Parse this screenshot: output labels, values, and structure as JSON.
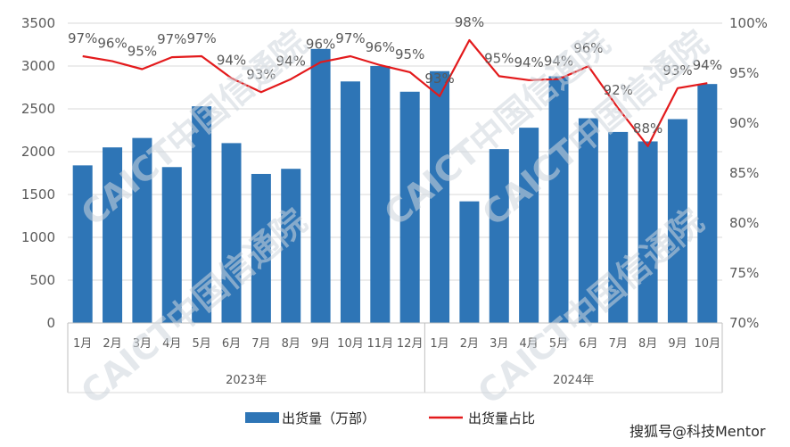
{
  "chart_data": {
    "type": "bar",
    "categories": [
      "1月",
      "2月",
      "3月",
      "4月",
      "5月",
      "6月",
      "7月",
      "8月",
      "9月",
      "10月",
      "11月",
      "12月",
      "1月",
      "2月",
      "3月",
      "4月",
      "5月",
      "6月",
      "7月",
      "8月",
      "9月",
      "10月"
    ],
    "groups": [
      {
        "label": "2023年",
        "count": 12
      },
      {
        "label": "2024年",
        "count": 10
      }
    ],
    "series": [
      {
        "name": "出货量（万部）",
        "type": "bar",
        "axis": "left",
        "color": "#2e75b6",
        "values": [
          1840,
          2050,
          2160,
          1820,
          2530,
          2100,
          1740,
          1800,
          3200,
          2820,
          3000,
          2700,
          2940,
          1420,
          2030,
          2280,
          2880,
          2390,
          2230,
          2120,
          2380,
          2790
        ]
      },
      {
        "name": "出货量占比",
        "type": "line",
        "axis": "right",
        "color": "#e31a1c",
        "values": [
          96.7,
          96.2,
          95.4,
          96.6,
          96.7,
          94.5,
          93.1,
          94.4,
          96.1,
          96.7,
          95.8,
          95.1,
          92.7,
          98.3,
          94.7,
          94.3,
          94.4,
          95.7,
          91.5,
          87.7,
          93.5,
          94.0
        ],
        "labels": [
          "97%",
          "96%",
          "95%",
          "97%",
          "97%",
          "94%",
          "93%",
          "94%",
          "96%",
          "97%",
          "96%",
          "95%",
          "93%",
          "98%",
          "95%",
          "94%",
          "94%",
          "96%",
          "92%",
          "88%",
          "93%",
          "94%"
        ]
      }
    ],
    "y_left": {
      "min": 0,
      "max": 3500,
      "ticks": [
        "0",
        "500",
        "1000",
        "1500",
        "2000",
        "2500",
        "3000",
        "3500"
      ]
    },
    "y_right": {
      "min": 70,
      "max": 100,
      "ticks": [
        "70%",
        "75%",
        "80%",
        "85%",
        "90%",
        "95%",
        "100%"
      ]
    },
    "legend": {
      "position": "bottom"
    },
    "grid": true
  },
  "watermark": {
    "logo_text": "CAICT中国信通院",
    "source": "搜狐号@科技Mentor"
  }
}
